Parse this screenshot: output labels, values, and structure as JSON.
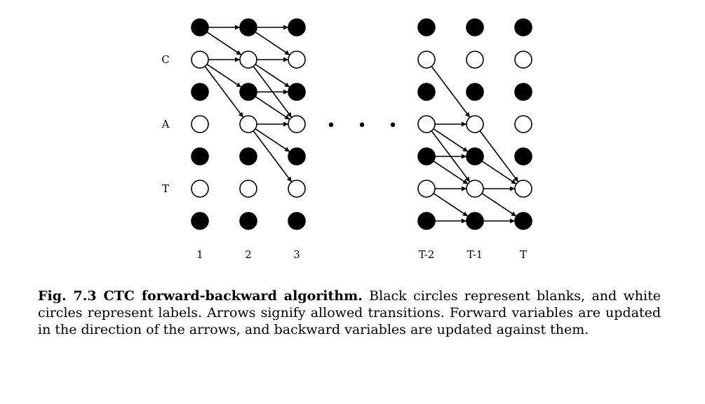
{
  "diagram": {
    "row_labels": [
      {
        "row": 1,
        "text": "C"
      },
      {
        "row": 3,
        "text": "A"
      },
      {
        "row": 5,
        "text": "T"
      }
    ],
    "columns": [
      {
        "label": "1",
        "nodes": [
          "blank",
          "label",
          "blank",
          "label",
          "blank",
          "label",
          "blank"
        ]
      },
      {
        "label": "2",
        "nodes": [
          "blank",
          "label",
          "blank",
          "label",
          "blank",
          "label",
          "blank"
        ]
      },
      {
        "label": "3",
        "nodes": [
          "blank",
          "label",
          "blank",
          "label",
          "blank",
          "label",
          "blank"
        ]
      },
      {
        "label": "T-2",
        "nodes": [
          "blank",
          "label",
          "blank",
          "label",
          "blank",
          "label",
          "blank"
        ]
      },
      {
        "label": "T-1",
        "nodes": [
          "blank",
          "label",
          "blank",
          "label",
          "blank",
          "label",
          "blank"
        ]
      },
      {
        "label": "T",
        "nodes": [
          "blank",
          "label",
          "blank",
          "label",
          "blank",
          "label",
          "blank"
        ]
      }
    ],
    "ellipsis": "• • •",
    "transitions": [
      {
        "from": [
          0,
          0
        ],
        "to": [
          1,
          0
        ]
      },
      {
        "from": [
          0,
          0
        ],
        "to": [
          1,
          1
        ]
      },
      {
        "from": [
          0,
          1
        ],
        "to": [
          1,
          1
        ]
      },
      {
        "from": [
          0,
          1
        ],
        "to": [
          1,
          2
        ]
      },
      {
        "from": [
          0,
          1
        ],
        "to": [
          1,
          3
        ]
      },
      {
        "from": [
          1,
          0
        ],
        "to": [
          2,
          0
        ]
      },
      {
        "from": [
          1,
          0
        ],
        "to": [
          2,
          1
        ]
      },
      {
        "from": [
          1,
          1
        ],
        "to": [
          2,
          1
        ]
      },
      {
        "from": [
          1,
          1
        ],
        "to": [
          2,
          2
        ]
      },
      {
        "from": [
          1,
          1
        ],
        "to": [
          2,
          3
        ]
      },
      {
        "from": [
          1,
          2
        ],
        "to": [
          2,
          2
        ]
      },
      {
        "from": [
          1,
          2
        ],
        "to": [
          2,
          3
        ]
      },
      {
        "from": [
          1,
          3
        ],
        "to": [
          2,
          3
        ]
      },
      {
        "from": [
          1,
          3
        ],
        "to": [
          2,
          4
        ]
      },
      {
        "from": [
          1,
          3
        ],
        "to": [
          2,
          5
        ]
      },
      {
        "from": [
          3,
          1
        ],
        "to": [
          4,
          3
        ]
      },
      {
        "from": [
          3,
          3
        ],
        "to": [
          4,
          3
        ]
      },
      {
        "from": [
          3,
          3
        ],
        "to": [
          4,
          4
        ]
      },
      {
        "from": [
          3,
          3
        ],
        "to": [
          4,
          5
        ]
      },
      {
        "from": [
          3,
          4
        ],
        "to": [
          4,
          4
        ]
      },
      {
        "from": [
          3,
          4
        ],
        "to": [
          4,
          5
        ]
      },
      {
        "from": [
          3,
          5
        ],
        "to": [
          4,
          5
        ]
      },
      {
        "from": [
          3,
          5
        ],
        "to": [
          4,
          6
        ]
      },
      {
        "from": [
          3,
          6
        ],
        "to": [
          4,
          6
        ]
      },
      {
        "from": [
          4,
          3
        ],
        "to": [
          5,
          5
        ]
      },
      {
        "from": [
          4,
          4
        ],
        "to": [
          5,
          5
        ]
      },
      {
        "from": [
          4,
          5
        ],
        "to": [
          5,
          5
        ]
      },
      {
        "from": [
          4,
          5
        ],
        "to": [
          5,
          6
        ]
      },
      {
        "from": [
          4,
          6
        ],
        "to": [
          5,
          6
        ]
      }
    ],
    "colors": {
      "blank": "#000000",
      "label": "#ffffff",
      "stroke": "#000000"
    }
  },
  "caption": {
    "title": "Fig. 7.3 CTC forward-backward algorithm.",
    "body": " Black circles represent blanks, and white circles represent labels. Arrows signify allowed transitions. Forward variables are updated in the direction of the arrows, and backward variables are updated against them."
  }
}
